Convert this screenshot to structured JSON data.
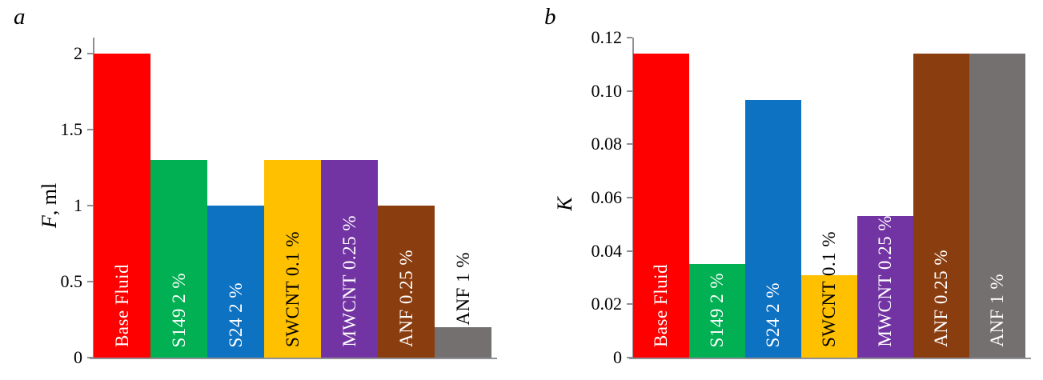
{
  "figure": {
    "background": "#ffffff",
    "axis_color": "#8f8f96",
    "text_color": "#000000"
  },
  "chart_data": [
    {
      "id": "a",
      "type": "bar",
      "panel_letter": "a",
      "ylabel": "F, ml",
      "ylabel_italic": "F",
      "ylabel_rest": ", ml",
      "ylim": [
        0,
        2
      ],
      "grid": false,
      "legend": false,
      "yticks": [
        {
          "label": "2",
          "value": 2
        },
        {
          "label": "1.5",
          "value": 1.5
        },
        {
          "label": "1",
          "value": 1
        },
        {
          "label": "0.5",
          "value": 0.5
        },
        {
          "label": "0",
          "value": 0
        }
      ],
      "categories": [
        "Base Fluid",
        "S149 2 %",
        "S24 2 %",
        "SWCNT 0.1 %",
        "MWCNT 0.25 %",
        "ANF 0.25 %",
        "ANF 1 %"
      ],
      "values": [
        2.0,
        1.3,
        1.0,
        1.3,
        1.3,
        1.0,
        0.2
      ],
      "bar_colors": [
        "#ff0000",
        "#00b052",
        "#0e72c3",
        "#ffc000",
        "#7233a3",
        "#8a3d0f",
        "#747070"
      ],
      "label_colors": [
        "#ffffff",
        "#ffffff",
        "#ffffff",
        "#000000",
        "#ffffff",
        "#ffffff",
        "#000000"
      ],
      "label_above_bar": [
        false,
        false,
        false,
        false,
        false,
        false,
        true
      ]
    },
    {
      "id": "b",
      "type": "bar",
      "panel_letter": "b",
      "ylabel": "K",
      "ylabel_italic": "K",
      "ylabel_rest": "",
      "ylim": [
        0,
        0.12
      ],
      "grid": false,
      "legend": false,
      "yticks": [
        {
          "label": "0.12",
          "value": 0.12
        },
        {
          "label": "0.10",
          "value": 0.1
        },
        {
          "label": "0.08",
          "value": 0.08
        },
        {
          "label": "0.06",
          "value": 0.06
        },
        {
          "label": "0.04",
          "value": 0.04
        },
        {
          "label": "0.02",
          "value": 0.02
        },
        {
          "label": "0",
          "value": 0
        }
      ],
      "categories": [
        "Base Fluid",
        "S149 2 %",
        "S24 2 %",
        "SWCNT 0.1 %",
        "MWCNT 0.25 %",
        "ANF 0.25 %",
        "ANF 1 %"
      ],
      "values": [
        0.114,
        0.035,
        0.0965,
        0.031,
        0.053,
        0.114,
        0.114
      ],
      "bar_colors": [
        "#ff0000",
        "#00b052",
        "#0e72c3",
        "#ffc000",
        "#7233a3",
        "#8a3d0f",
        "#747070"
      ],
      "label_colors": [
        "#ffffff",
        "#ffffff",
        "#ffffff",
        "#000000",
        "#ffffff",
        "#ffffff",
        "#ffffff"
      ],
      "label_above_bar": [
        false,
        false,
        false,
        false,
        false,
        false,
        false
      ]
    }
  ]
}
